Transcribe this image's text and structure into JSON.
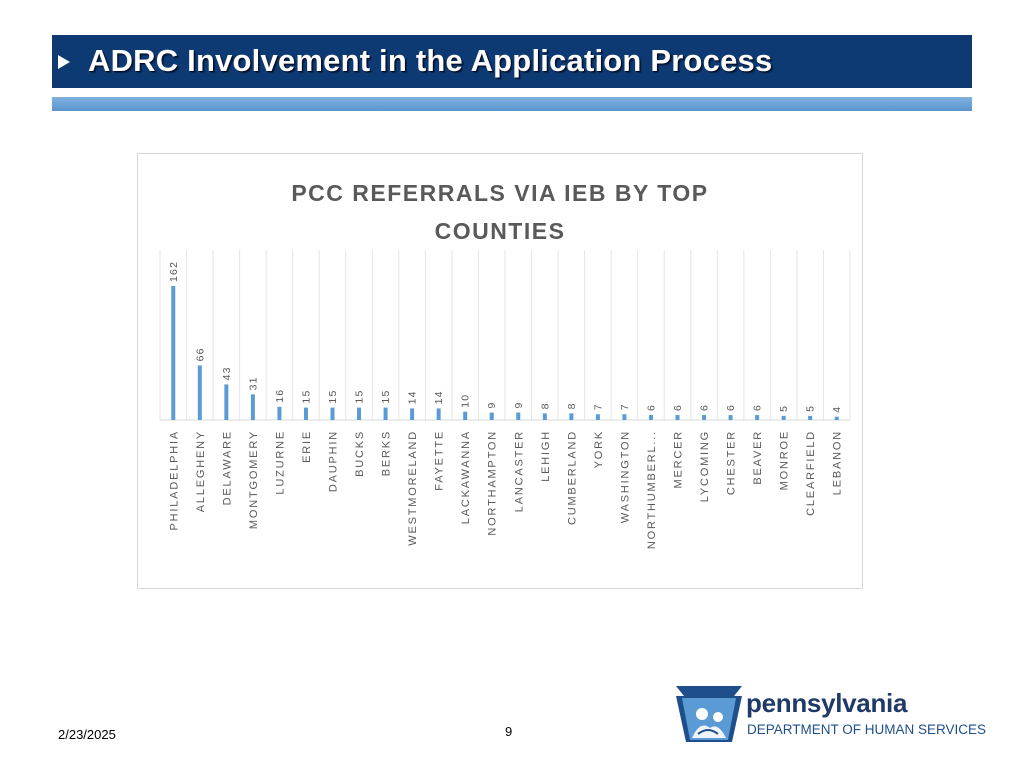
{
  "slide": {
    "title": "ADRC Involvement in the Application Process",
    "date": "2/23/2025",
    "page_number": "9"
  },
  "brand": {
    "name": "pennsylvania",
    "department": "DEPARTMENT OF HUMAN SERVICES"
  },
  "colors": {
    "title_bar": "#0d3a73",
    "accent_bar": "#6aa2d8",
    "bar": "#5b9bd5",
    "chart_text": "#595959"
  },
  "chart_data": {
    "type": "bar",
    "title": "PCC REFERRALS VIA IEB BY TOP COUNTIES",
    "categories": [
      "PHILADELPHIA",
      "ALLEGHENY",
      "DELAWARE",
      "MONTGOMERY",
      "LUZURNE",
      "ERIE",
      "DAUPHIN",
      "BUCKS",
      "BERKS",
      "WESTMORELAND",
      "FAYETTE",
      "LACKAWANNA",
      "NORTHAMPTON",
      "LANCASTER",
      "LEHIGH",
      "CUMBERLAND",
      "YORK",
      "WASHINGTON",
      "NORTHUMBERL...",
      "MERCER",
      "LYCOMING",
      "CHESTER",
      "BEAVER",
      "MONROE",
      "CLEARFIELD",
      "LEBANON"
    ],
    "values": [
      162,
      66,
      43,
      31,
      16,
      15,
      15,
      15,
      15,
      14,
      14,
      10,
      9,
      9,
      8,
      8,
      7,
      7,
      6,
      6,
      6,
      6,
      6,
      5,
      5,
      4
    ],
    "data_labels": [
      "162",
      "66",
      "43",
      "31",
      "16",
      "15",
      "15",
      "15",
      "15",
      "14",
      "14",
      "10",
      "9",
      "9",
      "8",
      "8",
      "7",
      "7",
      "6",
      "6",
      "6",
      "6",
      "6",
      "5",
      "5",
      "4"
    ],
    "xlabel": "",
    "ylabel": "",
    "ylim": [
      0,
      162
    ],
    "grid": "vertical",
    "legend": "none"
  }
}
